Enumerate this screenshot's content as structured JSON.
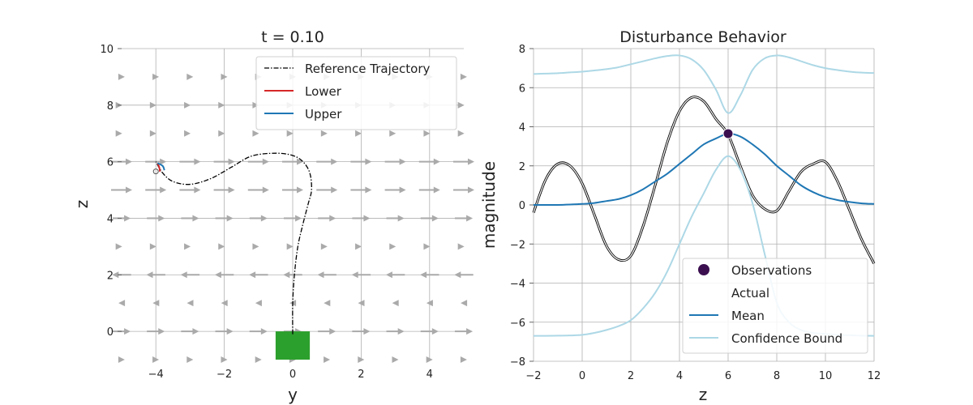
{
  "chart_data": [
    {
      "type": "line",
      "title": "t = 0.10",
      "xlabel": "y",
      "ylabel": "z",
      "xlim": [
        -5,
        5
      ],
      "ylim": [
        -1,
        10
      ],
      "xticks": [
        -4,
        -2,
        0,
        2,
        4
      ],
      "yticks": [
        0,
        2,
        4,
        6,
        8,
        10
      ],
      "xtick_labels": [
        "−4",
        "−2",
        "0",
        "2",
        "4"
      ],
      "ytick_labels": [
        "0",
        "2",
        "4",
        "6",
        "8",
        "10"
      ],
      "grid": true,
      "legend_position": "top-right",
      "legend": [
        "Reference Trajectory",
        "Lower",
        "Upper"
      ],
      "series": [
        {
          "name": "Reference Trajectory",
          "style": "dashdot",
          "color": "#000000",
          "x": [
            0,
            0,
            0.05,
            0.15,
            0.3,
            0.45,
            0.55,
            0.5,
            0.3,
            0,
            -0.5,
            -1.2,
            -1.8,
            -2.4,
            -3.0,
            -3.5,
            -3.8,
            -4.0
          ],
          "y": [
            -0.1,
            1.0,
            2.0,
            3.0,
            3.8,
            4.5,
            5.0,
            5.6,
            6.0,
            6.22,
            6.3,
            6.2,
            5.8,
            5.4,
            5.2,
            5.3,
            5.6,
            6.0
          ]
        },
        {
          "name": "Lower",
          "color": "#d62728",
          "x": [
            -3.95,
            -3.9,
            -3.88
          ],
          "y": [
            5.95,
            5.8,
            5.65
          ]
        },
        {
          "name": "Upper",
          "color": "#1f77b4",
          "x": [
            -3.95,
            -3.8,
            -3.75
          ],
          "y": [
            5.95,
            5.85,
            5.7
          ]
        }
      ],
      "vector_field": {
        "color": "#aaaaaa",
        "rows": [
          {
            "z": 9,
            "y": [
              -5,
              -4,
              -3,
              -2,
              -1,
              0,
              1,
              2,
              3,
              4,
              5
            ],
            "dy": [
              0.3,
              0.3,
              0.3,
              0.3,
              0.3,
              0.3,
              0.3,
              0.3,
              0.3,
              0.3,
              0.3
            ]
          },
          {
            "z": 8,
            "y": [
              -5,
              -4,
              -3,
              -2,
              -1,
              0,
              1,
              2,
              3,
              4,
              5
            ],
            "dy": [
              0.05,
              0.05,
              0.05,
              0.05,
              0.05,
              0.05,
              0.05,
              0.05,
              0.05,
              0.05,
              0.05
            ]
          },
          {
            "z": 7,
            "y": [
              -5,
              -4,
              -3,
              -2,
              -1,
              0,
              1,
              2,
              3,
              4,
              5
            ],
            "dy": [
              0.05,
              0.05,
              0.05,
              0.05,
              0.05,
              0.05,
              0.05,
              0.05,
              0.05,
              0.05,
              0.05
            ]
          },
          {
            "z": 6,
            "y": [
              -5,
              -4,
              -3,
              -2,
              -1,
              0,
              1,
              2,
              3,
              4,
              5
            ],
            "dy": [
              1,
              1,
              1,
              1,
              1,
              1,
              1,
              1,
              1,
              1,
              1
            ]
          },
          {
            "z": 5,
            "y": [
              -5,
              -4,
              -3,
              -2,
              -1,
              0,
              1,
              2,
              3,
              4,
              5
            ],
            "dy": [
              1,
              1,
              1,
              1,
              1,
              1,
              1,
              1,
              1,
              1,
              1
            ]
          },
          {
            "z": 4,
            "y": [
              -5,
              -4,
              -3,
              -2,
              -1,
              0,
              1,
              2,
              3,
              4,
              5
            ],
            "dy": [
              0.85,
              0.85,
              0.85,
              0.85,
              0.85,
              0.85,
              0.85,
              0.85,
              0.85,
              0.85,
              0.85
            ]
          },
          {
            "z": 3,
            "y": [
              -5,
              -4,
              -3,
              -2,
              -1,
              0,
              1,
              2,
              3,
              4,
              5
            ],
            "dy": [
              0.05,
              0.05,
              0.05,
              0.05,
              0.05,
              0.05,
              0.05,
              0.05,
              0.05,
              0.05,
              0.05
            ]
          },
          {
            "z": 2,
            "y": [
              -5,
              -4,
              -3,
              -2,
              -1,
              0,
              1,
              2,
              3,
              4,
              5
            ],
            "dy": [
              -0.9,
              -0.9,
              -0.9,
              -0.9,
              -0.9,
              -0.9,
              -0.9,
              -0.9,
              -0.9,
              -0.9,
              -0.9
            ]
          },
          {
            "z": 1,
            "y": [
              -5,
              -4,
              -3,
              -2,
              -1,
              0,
              1,
              2,
              3,
              4,
              5
            ],
            "dy": [
              -0.3,
              -0.3,
              -0.3,
              -0.3,
              -0.3,
              -0.3,
              -0.3,
              -0.3,
              -0.3,
              -0.3,
              -0.3
            ]
          },
          {
            "z": 0,
            "y": [
              -5,
              -4,
              -3,
              -2,
              -1,
              0,
              1,
              2,
              3,
              4,
              5
            ],
            "dy": [
              0.85,
              0.85,
              0.85,
              0.85,
              0.85,
              0.85,
              0.85,
              0.85,
              0.85,
              0.85,
              0.85
            ]
          },
          {
            "z": -1,
            "y": [
              -5,
              -4,
              -3,
              -2,
              -1,
              0,
              1,
              2,
              3,
              4,
              5
            ],
            "dy": [
              0.3,
              0.3,
              0.3,
              0.3,
              0.3,
              0.3,
              0.3,
              0.3,
              0.3,
              0.3,
              0.3
            ]
          }
        ]
      },
      "start_marker": {
        "color": "#2ca02c",
        "y_range": [
          -0.5,
          0.5
        ],
        "z_range": [
          -1,
          0
        ]
      }
    },
    {
      "type": "line",
      "title": "Disturbance Behavior",
      "xlabel": "z",
      "ylabel": "magnitude",
      "xlim": [
        -2,
        12
      ],
      "ylim": [
        -8,
        8
      ],
      "xticks": [
        -2,
        0,
        2,
        4,
        6,
        8,
        10,
        12
      ],
      "yticks": [
        -8,
        -6,
        -4,
        -2,
        0,
        2,
        4,
        6,
        8
      ],
      "xtick_labels": [
        "−2",
        "0",
        "2",
        "4",
        "6",
        "8",
        "10",
        "12"
      ],
      "ytick_labels": [
        "−8",
        "−6",
        "−4",
        "−2",
        "0",
        "2",
        "4",
        "6",
        "8"
      ],
      "grid": true,
      "legend_position": "bottom-right",
      "legend": [
        "Observations",
        "Actual",
        "Mean",
        "Confidence Bound"
      ],
      "x": [
        -2,
        -1.5,
        -1,
        -0.5,
        0,
        0.5,
        1,
        1.5,
        2,
        2.5,
        3,
        3.5,
        4,
        4.5,
        5,
        5.5,
        6,
        6.5,
        7,
        7.5,
        8,
        8.5,
        9,
        9.5,
        10,
        10.5,
        11,
        11.5,
        12
      ],
      "series": [
        {
          "name": "Actual",
          "color": "#000000",
          "values": [
            -0.4,
            1.3,
            2.1,
            2.0,
            1.1,
            -0.5,
            -2.1,
            -2.8,
            -2.6,
            -1.1,
            1.0,
            3.2,
            4.8,
            5.5,
            5.3,
            4.4,
            3.6,
            2.0,
            0.5,
            -0.2,
            -0.3,
            0.7,
            1.7,
            2.1,
            2.2,
            1.2,
            -0.3,
            -1.8,
            -3.0
          ]
        },
        {
          "name": "Mean",
          "color": "#1f77b4",
          "values": [
            0.0,
            0.0,
            0.0,
            0.02,
            0.05,
            0.1,
            0.2,
            0.3,
            0.5,
            0.8,
            1.2,
            1.6,
            2.1,
            2.6,
            3.1,
            3.4,
            3.65,
            3.5,
            3.1,
            2.6,
            2.0,
            1.5,
            1.0,
            0.65,
            0.4,
            0.25,
            0.15,
            0.08,
            0.05
          ]
        },
        {
          "name": "Confidence Bound",
          "color": "#add8e6",
          "values": [
            6.7,
            6.72,
            6.74,
            6.78,
            6.82,
            6.88,
            6.95,
            7.05,
            7.2,
            7.35,
            7.5,
            7.62,
            7.65,
            7.45,
            6.9,
            5.9,
            4.7,
            5.6,
            6.9,
            7.5,
            7.65,
            7.55,
            7.35,
            7.15,
            7.0,
            6.9,
            6.82,
            6.77,
            6.75
          ]
        },
        {
          "name": "Confidence Bound (lower)",
          "color": "#add8e6",
          "values": [
            -6.7,
            -6.7,
            -6.69,
            -6.68,
            -6.65,
            -6.55,
            -6.4,
            -6.2,
            -5.9,
            -5.3,
            -4.5,
            -3.4,
            -2.0,
            -0.6,
            0.6,
            1.8,
            2.5,
            1.8,
            0.1,
            -2.5,
            -5.0,
            -6.0,
            -6.4,
            -6.55,
            -6.6,
            -6.65,
            -6.67,
            -6.69,
            -6.7
          ]
        }
      ],
      "observations": {
        "name": "Observations",
        "color": "#3b0f4f",
        "x": [
          6.0
        ],
        "y": [
          3.65
        ]
      }
    }
  ]
}
